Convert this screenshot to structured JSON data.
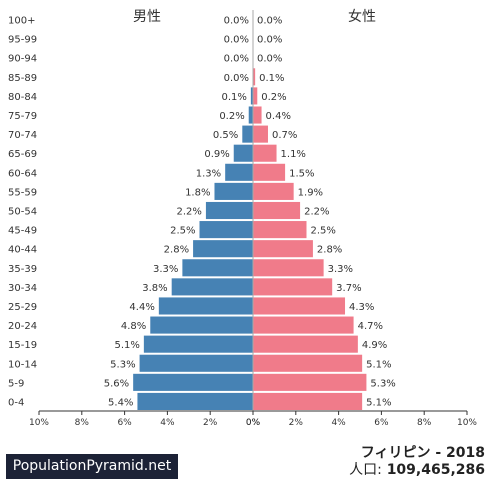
{
  "labels": {
    "male": "男性",
    "female": "女性"
  },
  "brand": "PopulationPyramid.net",
  "country_year": "フィリピン - 2018",
  "population_label": "人口:",
  "population_value": "109,465,286",
  "colors": {
    "male": "#4682b4",
    "female": "#f07b8a"
  },
  "chart_data": {
    "type": "bar",
    "orientation": "horizontal-pyramid",
    "age_groups": [
      "100+",
      "95-99",
      "90-94",
      "85-89",
      "80-84",
      "75-79",
      "70-74",
      "65-69",
      "60-64",
      "55-59",
      "50-54",
      "45-49",
      "40-44",
      "35-39",
      "30-34",
      "25-29",
      "20-24",
      "15-19",
      "10-14",
      "5-9",
      "0-4"
    ],
    "series": [
      {
        "name": "男性",
        "values": [
          0.0,
          0.0,
          0.0,
          0.0,
          0.1,
          0.2,
          0.5,
          0.9,
          1.3,
          1.8,
          2.2,
          2.5,
          2.8,
          3.3,
          3.8,
          4.4,
          4.8,
          5.1,
          5.3,
          5.6,
          5.4
        ],
        "value_labels": [
          "0.0%",
          "0.0%",
          "0.0%",
          "0.0%",
          "0.1%",
          "0.2%",
          "0.5%",
          "0.9%",
          "1.3%",
          "1.8%",
          "2.2%",
          "2.5%",
          "2.8%",
          "3.3%",
          "3.8%",
          "4.4%",
          "4.8%",
          "5.1%",
          "5.3%",
          "5.6%",
          "5.4%"
        ]
      },
      {
        "name": "女性",
        "values": [
          0.0,
          0.0,
          0.0,
          0.1,
          0.2,
          0.4,
          0.7,
          1.1,
          1.5,
          1.9,
          2.2,
          2.5,
          2.8,
          3.3,
          3.7,
          4.3,
          4.7,
          4.9,
          5.1,
          5.3,
          5.1
        ],
        "value_labels": [
          "0.0%",
          "0.0%",
          "0.0%",
          "0.1%",
          "0.2%",
          "0.4%",
          "0.7%",
          "1.1%",
          "1.5%",
          "1.9%",
          "2.2%",
          "2.5%",
          "2.8%",
          "3.3%",
          "3.7%",
          "4.3%",
          "4.7%",
          "4.9%",
          "5.1%",
          "5.3%",
          "5.1%"
        ]
      }
    ],
    "x_ticks_male": [
      "10%",
      "8%",
      "6%",
      "4%",
      "2%",
      "0%"
    ],
    "x_ticks_female": [
      "0%",
      "2%",
      "4%",
      "6%",
      "8%",
      "10%"
    ],
    "xlim": [
      0,
      10
    ]
  }
}
